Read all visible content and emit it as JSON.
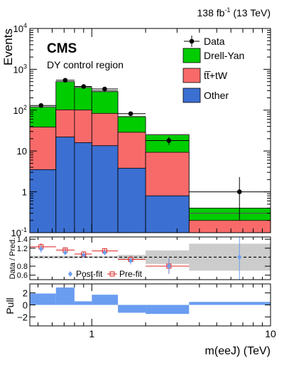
{
  "chart_data": {
    "type": "bar",
    "lumi_label": "138 fb",
    "lumi_sup": "-1",
    "lumi_energy": " (13 TeV)",
    "experiment": "CMS",
    "region": "DY control region",
    "x_title": "m(eeJ) (TeV)",
    "x_log": true,
    "xlim": [
      0.45,
      10
    ],
    "x_ticks": [
      {
        "v": 1,
        "label": "1"
      },
      {
        "v": 10,
        "label": "10"
      }
    ],
    "bin_edges": [
      0.45,
      0.63,
      0.8,
      1.0,
      1.4,
      2.0,
      3.5,
      10.0
    ],
    "main": {
      "ylabel": "Events",
      "y_log": true,
      "ylim": [
        0.1,
        10000
      ],
      "y_ticks": [
        {
          "v": 0.1,
          "label": "10",
          "sup": "-1"
        },
        {
          "v": 1,
          "label": "1",
          "sup": ""
        },
        {
          "v": 10,
          "label": "10",
          "sup": ""
        },
        {
          "v": 100,
          "label": "10",
          "sup": "2"
        },
        {
          "v": 1000,
          "label": "10",
          "sup": "3"
        },
        {
          "v": 10000,
          "label": "10",
          "sup": "4"
        }
      ],
      "stack": [
        {
          "name": "Other",
          "color": "#3b6fd1",
          "values": [
            3.5,
            22,
            16,
            13.5,
            3.8,
            0.8,
            0.1
          ]
        },
        {
          "name": "tt̅+tW",
          "color": "#f86a6a",
          "values": [
            35,
            80,
            85,
            70,
            25,
            8.5,
            0.1
          ]
        },
        {
          "name": "Drell-Yan",
          "color": "#00cc00",
          "values": [
            80,
            400,
            260,
            200,
            40,
            16,
            0.2
          ]
        }
      ],
      "total": [
        120,
        500,
        360,
        300,
        70,
        25,
        0.3
      ],
      "data": [
        {
          "x": 0.52,
          "y": 130,
          "xerr": [
            0.45,
            0.63
          ],
          "yerr": [
            12,
            12
          ]
        },
        {
          "x": 0.71,
          "y": 540,
          "xerr": [
            0.63,
            0.8
          ],
          "yerr": [
            23,
            23
          ]
        },
        {
          "x": 0.9,
          "y": 380,
          "xerr": [
            0.8,
            1.0
          ],
          "yerr": [
            19,
            19
          ]
        },
        {
          "x": 1.18,
          "y": 330,
          "xerr": [
            1.0,
            1.4
          ],
          "yerr": [
            18,
            18
          ]
        },
        {
          "x": 1.65,
          "y": 82,
          "xerr": [
            1.4,
            2.0
          ],
          "yerr": [
            9,
            9
          ]
        },
        {
          "x": 2.7,
          "y": 18,
          "xerr": [
            2.0,
            3.5
          ],
          "yerr": [
            4,
            4
          ]
        },
        {
          "x": 6.7,
          "y": 1,
          "xerr": [
            3.5,
            10.0
          ],
          "yerr": [
            0.8,
            1.3
          ]
        }
      ],
      "legend": [
        {
          "label": "Data",
          "kind": "marker"
        },
        {
          "label": "Drell-Yan",
          "kind": "box",
          "color": "#00cc00"
        },
        {
          "label": "tt̅+tW",
          "kind": "box",
          "color": "#f86a6a"
        },
        {
          "label": "Other",
          "kind": "box",
          "color": "#3b6fd1"
        }
      ]
    },
    "ratio": {
      "ylabel": "Data / Pred.",
      "ylim": [
        0.5,
        1.45
      ],
      "y_ticks": [
        {
          "v": 0.6,
          "label": "0.6"
        },
        {
          "v": 0.8,
          "label": "0.8"
        },
        {
          "v": 1.2,
          "label": "1.2"
        },
        {
          "v": 1.4,
          "label": "1.4"
        }
      ],
      "band_color": "#cccccc",
      "band": [
        [
          0.97,
          1.03
        ],
        [
          0.97,
          1.03
        ],
        [
          0.98,
          1.02
        ],
        [
          0.98,
          1.02
        ],
        [
          0.95,
          1.05
        ],
        [
          0.85,
          1.15
        ],
        [
          0.7,
          1.3
        ]
      ],
      "postfit": [
        {
          "x": 0.52,
          "y": 1.18,
          "err": 0.08
        },
        {
          "x": 0.71,
          "y": 1.1,
          "err": 0.05
        },
        {
          "x": 0.9,
          "y": 1.05,
          "err": 0.05
        },
        {
          "x": 1.18,
          "y": 1.1,
          "err": 0.05
        },
        {
          "x": 1.65,
          "y": 0.92,
          "err": 0.08
        },
        {
          "x": 2.7,
          "y": 0.8,
          "err": 0.17
        },
        {
          "x": 6.7,
          "y": 1.0,
          "err": 0.9
        }
      ],
      "prefit": [
        {
          "x": 0.52,
          "y": 1.23,
          "err": 0.08
        },
        {
          "x": 0.71,
          "y": 1.16,
          "err": 0.05
        },
        {
          "x": 0.9,
          "y": 1.07,
          "err": 0.05
        },
        {
          "x": 1.18,
          "y": 1.14,
          "err": 0.05
        },
        {
          "x": 1.65,
          "y": 0.95,
          "err": 0.08
        },
        {
          "x": 2.7,
          "y": 0.8,
          "err": 0.17
        }
      ],
      "postfit_label": "Post-fit",
      "prefit_label": "Pre-fit",
      "postfit_color": "#6a9df0",
      "prefit_color": "#dd2222"
    },
    "pull": {
      "ylabel": "Pull",
      "ylim": [
        -3.5,
        3.5
      ],
      "y_ticks": [
        {
          "v": -2,
          "label": "−2"
        },
        {
          "v": 0,
          "label": "0"
        },
        {
          "v": 2,
          "label": "2"
        }
      ],
      "color": "#6a9df0",
      "values": [
        1.9,
        2.9,
        0.6,
        1.7,
        -1.3,
        -1.5,
        0.5
      ]
    }
  }
}
